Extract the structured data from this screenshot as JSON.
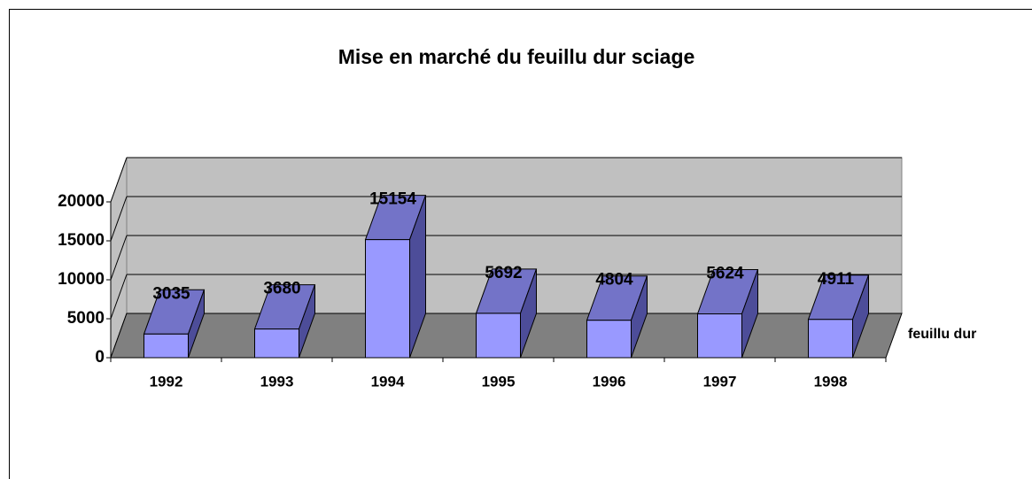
{
  "chart_data": {
    "type": "bar",
    "title": "Mise en marché du feuillu dur sciage",
    "categories": [
      "1992",
      "1993",
      "1994",
      "1995",
      "1996",
      "1997",
      "1998"
    ],
    "series": [
      {
        "name": "feuillu dur",
        "color": "#9999ff",
        "values": [
          3035,
          3680,
          15154,
          5692,
          4804,
          5624,
          4911
        ]
      }
    ],
    "ylim": [
      0,
      20000
    ],
    "yticks": [
      0,
      5000,
      10000,
      15000,
      20000
    ],
    "grid": true
  }
}
